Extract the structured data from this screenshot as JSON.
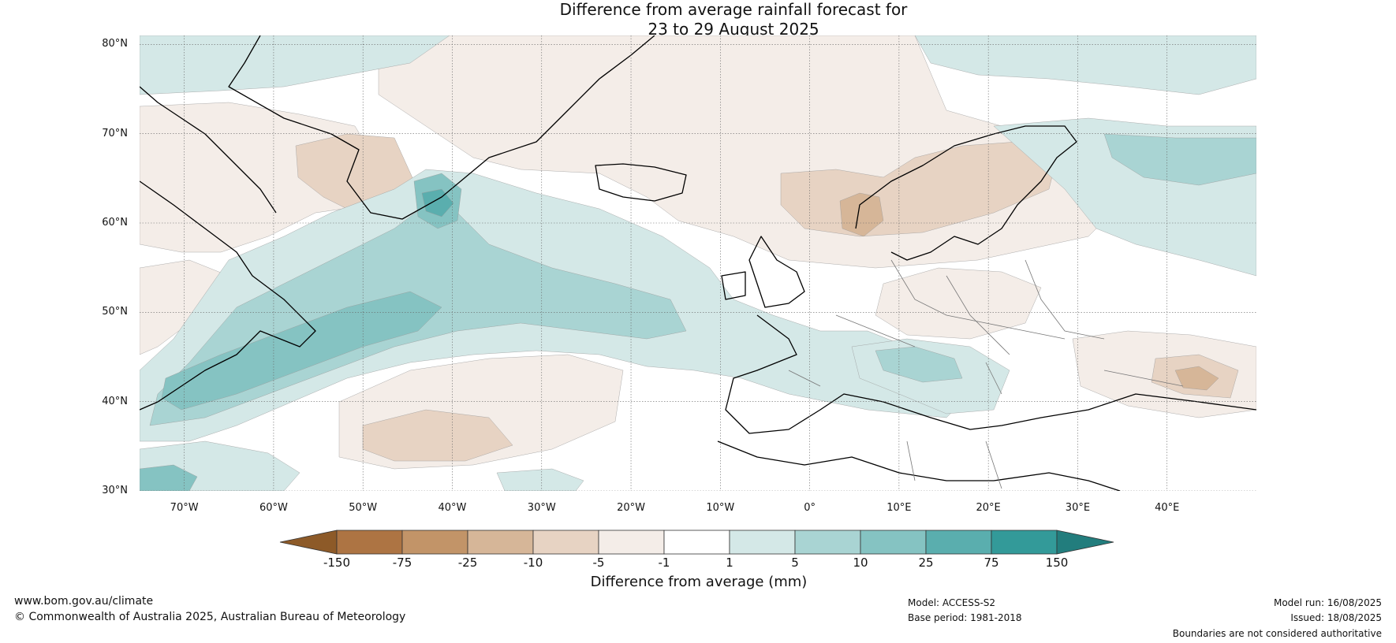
{
  "title_line1": "Difference from average rainfall forecast for",
  "title_line2": "23 to 29 August 2025",
  "map": {
    "lat_labels": [
      "80°N",
      "70°N",
      "60°N",
      "50°N",
      "40°N",
      "30°N"
    ],
    "lat_values": [
      80,
      70,
      60,
      50,
      40,
      30
    ],
    "lon_labels": [
      "70°W",
      "60°W",
      "50°W",
      "40°W",
      "30°W",
      "20°W",
      "10°W",
      "0°",
      "10°E",
      "20°E",
      "30°E",
      "40°E"
    ],
    "lon_values": [
      -70,
      -60,
      -50,
      -40,
      -30,
      -20,
      -10,
      0,
      10,
      20,
      30,
      40
    ],
    "extent": {
      "lon_min": -75,
      "lon_max": 50,
      "lat_min": 30,
      "lat_max": 81
    },
    "ocean_color": "#ffffff",
    "coastline_color": "#000000",
    "border_color": "#777777"
  },
  "legend": {
    "title": "Difference from average (mm)",
    "ticks": [
      "-150",
      "-75",
      "-25",
      "-10",
      "-5",
      "-1",
      "1",
      "5",
      "10",
      "25",
      "75",
      "150"
    ],
    "colors": [
      "#8d5a28",
      "#ad7443",
      "#c29468",
      "#d6b698",
      "#e7d3c3",
      "#f4ede8",
      "#ffffff",
      "#d4e8e7",
      "#a9d4d3",
      "#85c3c2",
      "#5aaeae",
      "#339a99",
      "#227d7d"
    ]
  },
  "footer": {
    "url": "www.bom.gov.au/climate",
    "copyright": "© Commonwealth of Australia 2025, Australian Bureau of Meteorology",
    "model": "Model: ACCESS-S2",
    "base_period": "Base period: 1981-2018",
    "model_run": "Model run: 16/08/2025",
    "issued": "Issued: 18/08/2025",
    "disclaimer": "Boundaries are not considered authoritative"
  }
}
